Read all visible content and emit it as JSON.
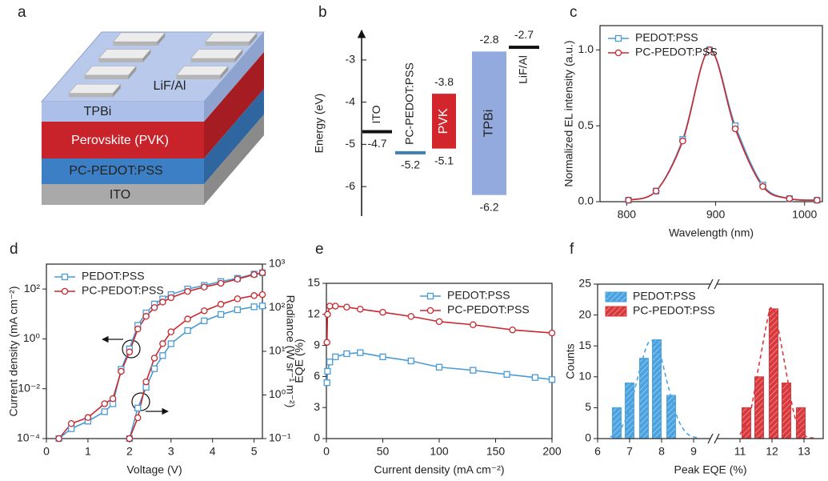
{
  "panel_labels": [
    "a",
    "b",
    "c",
    "d",
    "e",
    "f"
  ],
  "schematic": {
    "layers": [
      "ITO",
      "PC-PEDOT:PSS",
      "Perovskite (PVK)",
      "TPBi",
      "LiF/Al"
    ]
  },
  "chart_data": [
    {
      "type": "energy",
      "ylabel": "Energy (eV)",
      "ylim": [
        -6.7,
        -2.3
      ],
      "yticks": [
        -3,
        -4,
        -5,
        -6
      ],
      "series": [
        {
          "name": "ITO",
          "color": "#111111",
          "values": [
            -4.7
          ]
        },
        {
          "name": "PC-PEDOT:PSS",
          "color": "#3d7fb8",
          "values": [
            -5.2
          ]
        },
        {
          "name": "PVK",
          "color": "#d3262c",
          "values": [
            -3.8,
            -5.1
          ]
        },
        {
          "name": "TPBi",
          "color": "#93aadf",
          "values": [
            -2.8,
            -6.2
          ]
        },
        {
          "name": "LiF/Al",
          "color": "#111111",
          "values": [
            -2.7
          ]
        }
      ]
    },
    {
      "type": "line",
      "xlabel": "Wavelength (nm)",
      "ylabel": "Normalized EL intensity (a.u.)",
      "xlim": [
        770,
        1020
      ],
      "xticks": [
        800,
        900,
        1000
      ],
      "ylim": [
        0,
        1.16
      ],
      "yticks": [
        {
          "value": 0,
          "label": "0.0"
        },
        0.5,
        {
          "value": 1,
          "label": "1.0"
        }
      ],
      "smooth": true,
      "legend": "upper left",
      "series": [
        {
          "name": "PEDOT:PSS",
          "color": "#4a9ad6",
          "marker": "square",
          "x": [
            802,
            833,
            863,
            893,
            922,
            953,
            983,
            1014
          ],
          "values": [
            0.01,
            0.07,
            0.41,
            1.0,
            0.5,
            0.11,
            0.02,
            0.01
          ]
        },
        {
          "name": "PC-PEDOT:PSS",
          "color": "#c8282e",
          "marker": "circle",
          "x": [
            802,
            833,
            863,
            893,
            922,
            953,
            983,
            1014
          ],
          "values": [
            0.01,
            0.07,
            0.4,
            1.0,
            0.48,
            0.1,
            0.02,
            0.01
          ]
        }
      ]
    },
    {
      "type": "line",
      "xlabel": "Voltage (V)",
      "ylabel": "Current density (mA cm⁻²)",
      "y2label": "Radiance (W sr⁻¹ m⁻²)",
      "xlim": [
        0,
        5.2
      ],
      "xticks": [
        0,
        1,
        2,
        3,
        4,
        5
      ],
      "ylim": [
        0.0001,
        1000
      ],
      "ylog": true,
      "yticks": [
        {
          "value": 0.0001,
          "label": "10⁻⁴"
        },
        {
          "value": 0.01,
          "label": "10⁻²"
        },
        {
          "value": 1,
          "label": "10⁰"
        },
        {
          "value": 100,
          "label": "10²"
        }
      ],
      "y2lim": [
        0.1,
        1000
      ],
      "y2log": true,
      "y2ticks": [
        {
          "value": 0.1,
          "label": "10⁻¹"
        },
        {
          "value": 1,
          "label": "10⁰"
        },
        {
          "value": 10,
          "label": "10¹"
        },
        {
          "value": 100,
          "label": "10²"
        },
        {
          "value": 1000,
          "label": "10³"
        }
      ],
      "legend": "upper left",
      "series": [
        {
          "name": "PEDOT:PSS",
          "color": "#4a9ad6",
          "marker": "square",
          "x": [
            0.3,
            0.6,
            1.0,
            1.4,
            1.6,
            1.8,
            2.0,
            2.2,
            2.4,
            2.6,
            2.8,
            3.0,
            3.4,
            3.8,
            4.2,
            4.6,
            5.0,
            5.2
          ],
          "values": [
            0.0001,
            0.00025,
            0.0005,
            0.0012,
            0.0025,
            0.06,
            0.4,
            3.5,
            11,
            25,
            40,
            60,
            100,
            140,
            200,
            270,
            400,
            450
          ]
        },
        {
          "name": "PC-PEDOT:PSS",
          "color": "#c8282e",
          "marker": "circle",
          "x": [
            0.3,
            0.6,
            1.0,
            1.4,
            1.6,
            1.8,
            2.0,
            2.2,
            2.4,
            2.6,
            2.8,
            3.0,
            3.4,
            3.8,
            4.2,
            4.6,
            5.0,
            5.2
          ],
          "values": [
            0.0001,
            0.0004,
            0.0007,
            0.0025,
            0.004,
            0.05,
            0.3,
            2.5,
            8,
            18,
            30,
            45,
            80,
            120,
            170,
            250,
            380,
            450
          ]
        },
        {
          "color": "#4a9ad6",
          "marker": "square",
          "axis": "y2",
          "x": [
            2.0,
            2.2,
            2.4,
            2.6,
            2.8,
            3.0,
            3.4,
            3.8,
            4.2,
            4.6,
            5.0,
            5.2
          ],
          "values": [
            0.1,
            0.5,
            1.5,
            4,
            8,
            15,
            30,
            50,
            70,
            90,
            105,
            110
          ]
        },
        {
          "color": "#c8282e",
          "marker": "circle",
          "axis": "y2",
          "x": [
            2.0,
            2.2,
            2.4,
            2.6,
            2.8,
            3.0,
            3.4,
            3.8,
            4.2,
            4.6,
            5.0,
            5.2
          ],
          "values": [
            0.1,
            0.3,
            2,
            7,
            15,
            28,
            55,
            85,
            120,
            160,
            190,
            200
          ]
        }
      ]
    },
    {
      "type": "line",
      "xlabel": "Current density (mA cm⁻²)",
      "ylabel": "EQE (%)",
      "xlim": [
        0,
        200
      ],
      "xticks": [
        0,
        50,
        100,
        150,
        200
      ],
      "ylim": [
        0,
        15
      ],
      "yticks": [
        0,
        3,
        6,
        9,
        12,
        15
      ],
      "legend": "upper right",
      "series": [
        {
          "name": "PEDOT:PSS",
          "color": "#4a9ad6",
          "marker": "square",
          "x": [
            0.5,
            1,
            3,
            8,
            18,
            30,
            50,
            75,
            100,
            130,
            160,
            185,
            200
          ],
          "values": [
            5.4,
            6.5,
            7.4,
            7.9,
            8.2,
            8.3,
            7.9,
            7.5,
            6.9,
            6.6,
            6.2,
            5.9,
            5.7
          ]
        },
        {
          "name": "PC-PEDOT:PSS",
          "color": "#c8282e",
          "marker": "circle",
          "x": [
            0.5,
            1,
            3,
            8,
            18,
            30,
            50,
            75,
            100,
            130,
            165,
            200
          ],
          "values": [
            9.3,
            12.0,
            12.8,
            12.8,
            12.7,
            12.5,
            12.2,
            11.8,
            11.3,
            11.0,
            10.5,
            10.2
          ]
        }
      ]
    },
    {
      "type": "bar",
      "xlabel": "Peak EQE (%)",
      "ylabel": "Counts",
      "xlim": [
        6,
        13.6
      ],
      "axis_break": [
        9.5,
        10.3
      ],
      "xticks": [
        6,
        7,
        8,
        9,
        11,
        12,
        13
      ],
      "ylim": [
        0,
        25
      ],
      "yticks": [
        0,
        5,
        10,
        15,
        20,
        25
      ],
      "hatch": true,
      "legend": "upper left",
      "series": [
        {
          "name": "PEDOT:PSS",
          "color": "#4aa3e0",
          "x": [
            6.6,
            7.0,
            7.45,
            7.85,
            8.3
          ],
          "values": [
            5,
            9,
            13,
            16,
            7
          ],
          "fit": {
            "x": [
              6.4,
              6.7,
              7.0,
              7.3,
              7.6,
              7.9,
              8.2,
              8.5,
              8.8,
              9.1
            ],
            "values": [
              0.25,
              1.4,
              4.8,
              10.8,
              15.6,
              14.5,
              8.6,
              3.3,
              0.8,
              0.13
            ]
          }
        },
        {
          "name": "PC-PEDOT:PSS",
          "color": "#d9393c",
          "x": [
            11.2,
            11.6,
            12.05,
            12.45,
            12.9
          ],
          "values": [
            5,
            10,
            21,
            9,
            5
          ],
          "fit": {
            "x": [
              11.0,
              11.3,
              11.6,
              11.9,
              12.0,
              12.1,
              12.4,
              12.7,
              13.0,
              13.3
            ],
            "values": [
              0.66,
              3.8,
              12.1,
              20.3,
              21,
              20.3,
              12.1,
              3.8,
              0.66,
              0.06
            ]
          }
        }
      ]
    }
  ]
}
